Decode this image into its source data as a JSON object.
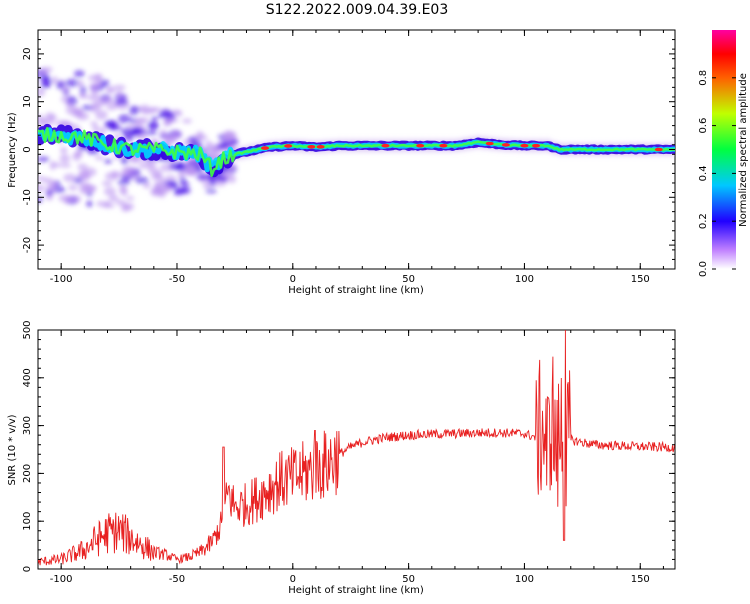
{
  "title": "S122.2022.009.04.39.E03",
  "colors": {
    "spectrum_low": "#c8a0f0",
    "spectrum_mid": "#3a00e0",
    "ridge": "#00e0ff",
    "snr_line": "#e82020",
    "axis": "#000000"
  },
  "chart_data": [
    {
      "type": "heatmap",
      "xlabel": "Height of straight line (km)",
      "ylabel": "Frequency (Hz)",
      "xlim": [
        -110,
        165
      ],
      "ylim": [
        -25,
        25
      ],
      "xticks": [
        -100,
        -50,
        0,
        50,
        100,
        150
      ],
      "yticks": [
        -20,
        -10,
        0,
        10,
        20
      ],
      "grid": false,
      "ridge": {
        "x": [
          -110,
          -100,
          -90,
          -80,
          -70,
          -60,
          -50,
          -40,
          -35,
          -30,
          -25,
          -20,
          -10,
          0,
          10,
          20,
          40,
          60,
          70,
          80,
          90,
          100,
          110,
          115,
          130,
          150,
          165
        ],
        "y": [
          3,
          3,
          2.5,
          1,
          0,
          0,
          -0.5,
          -1,
          -4,
          -2,
          -1,
          -0.5,
          0.5,
          0.8,
          0.5,
          0.8,
          0.8,
          0.8,
          0.8,
          1.5,
          1,
          0.8,
          0.8,
          0,
          0,
          0,
          0
        ]
      },
      "colorbar": {
        "label": "Normalized spectral amplitude",
        "ticks": [
          "0.0",
          "0.2",
          "0.4",
          "0.6",
          "0.8"
        ],
        "values": [
          0.0,
          0.2,
          0.4,
          0.6,
          0.8
        ],
        "range": [
          0,
          1
        ]
      }
    },
    {
      "type": "line",
      "xlabel": "Height of straight line (km)",
      "ylabel": "SNR (10 * v/v)",
      "xlim": [
        -110,
        165
      ],
      "ylim": [
        0,
        500
      ],
      "xticks": [
        -100,
        -50,
        0,
        50,
        100,
        150
      ],
      "yticks": [
        0,
        100,
        200,
        300,
        400,
        500
      ],
      "grid": false,
      "series": [
        {
          "x": [
            -110,
            -100,
            -90,
            -85,
            -80,
            -75,
            -70,
            -65,
            -60,
            -55,
            -50,
            -45,
            -40,
            -35,
            -30,
            -28,
            -25,
            -20,
            -15,
            -10,
            -5,
            0,
            5,
            10,
            15,
            20,
            25,
            30,
            40,
            50,
            60,
            70,
            80,
            90,
            100,
            105,
            108,
            110,
            112,
            114,
            116,
            118,
            120,
            125,
            130,
            140,
            150,
            160,
            165
          ],
          "y": [
            15,
            20,
            40,
            60,
            75,
            80,
            65,
            50,
            35,
            30,
            20,
            25,
            35,
            55,
            100,
            160,
            130,
            135,
            150,
            170,
            185,
            190,
            200,
            210,
            220,
            240,
            255,
            265,
            275,
            280,
            282,
            283,
            285,
            285,
            283,
            275,
            300,
            240,
            330,
            230,
            300,
            260,
            270,
            265,
            260,
            258,
            256,
            255,
            254
          ]
        }
      ]
    }
  ]
}
